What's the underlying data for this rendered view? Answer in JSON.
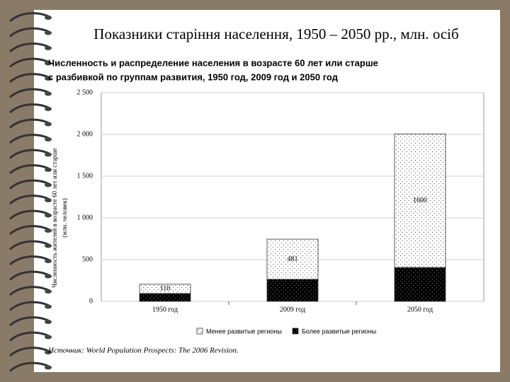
{
  "slide_title": "Показники старіння населення, 1950 – 2050 рр., млн. осіб",
  "chart_data": {
    "type": "stacked_bar",
    "title": [
      "Численность и распределение населения в возрасте 60 лет или старше",
      "с разбивкой по группам развития, 1950 год, 2009 год и 2050 год"
    ],
    "y_label": [
      "Численность жителей в возрасте 60 лет или старше",
      "(млн. человек)"
    ],
    "categories": [
      "1950 год",
      "2009 год",
      "2050 год"
    ],
    "series": [
      {
        "name": "Менее развитые регионы",
        "color": "#ffffff",
        "values": [
          110,
          481,
          1600
        ]
      },
      {
        "name": "Более развитые регионы",
        "color": "#000000",
        "values": [
          95,
          264,
          406
        ]
      }
    ],
    "ylim": [
      0,
      2500
    ],
    "yticks": [
      {
        "value": 0,
        "label": "0"
      },
      {
        "value": 500,
        "label": "500"
      },
      {
        "value": 1000,
        "label": "1 000"
      },
      {
        "value": 1500,
        "label": "1 500"
      },
      {
        "value": 2000,
        "label": "2 000"
      },
      {
        "value": 2500,
        "label": "2 500"
      }
    ],
    "grid": true,
    "source": "Источник: World Population Prospects: The 2006 Revision."
  }
}
